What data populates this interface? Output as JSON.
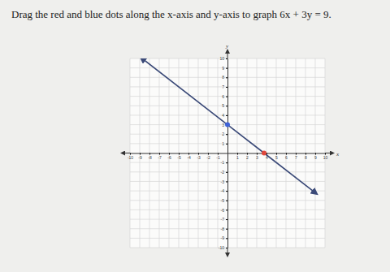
{
  "chart_data": {
    "type": "line",
    "title": "Drag the red and blue dots along the x-axis and y-axis to graph 6x + 3y = 9.",
    "xlabel": "x",
    "ylabel": "y",
    "xlim": [
      -10,
      10
    ],
    "ylim": [
      -10,
      10
    ],
    "xticks": [
      -10,
      -9,
      -8,
      -7,
      -6,
      -5,
      -4,
      -3,
      -2,
      -1,
      1,
      2,
      3,
      4,
      5,
      6,
      7,
      8,
      9,
      10
    ],
    "yticks": [
      -10,
      -9,
      -8,
      -7,
      -6,
      -5,
      -4,
      -3,
      -2,
      -1,
      1,
      2,
      3,
      4,
      5,
      6,
      7,
      8,
      9,
      10
    ],
    "grid": true,
    "series": [
      {
        "type": "line",
        "color": "#3b4a78",
        "x": [
          -8.75,
          0,
          3.75,
          9
        ],
        "values": [
          10,
          3,
          0,
          -4.2
        ]
      },
      {
        "type": "scatter",
        "color": "#3f63d8",
        "marker": "circle",
        "x": [
          0
        ],
        "values": [
          3
        ]
      },
      {
        "type": "scatter",
        "color": "#e0483c",
        "marker": "circle",
        "x": [
          3.75
        ],
        "values": [
          0
        ]
      }
    ]
  }
}
